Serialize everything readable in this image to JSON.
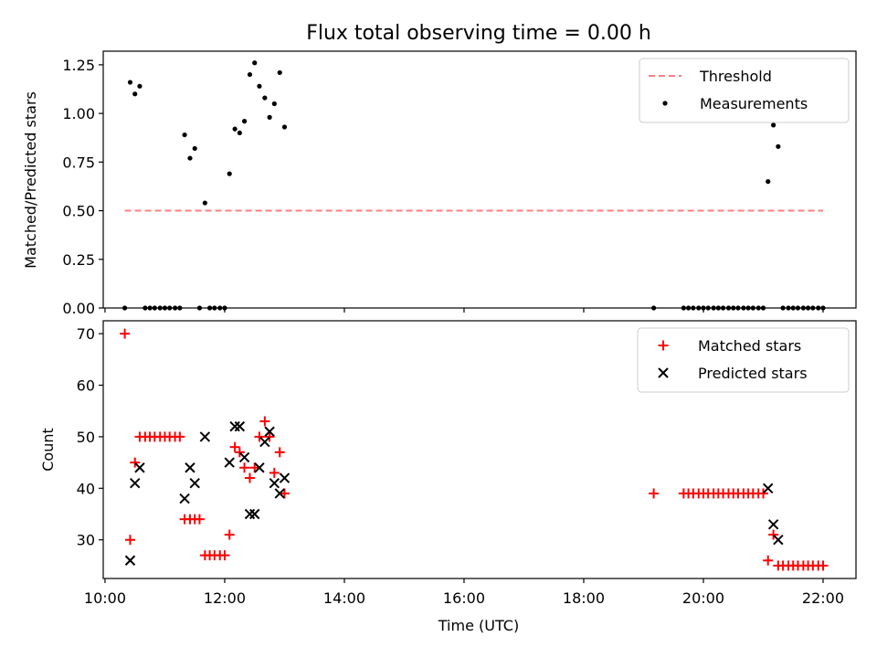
{
  "chart_data": [
    {
      "type": "scatter",
      "title": "Flux total observing time = 0.00 h",
      "xlabel": "",
      "ylabel": "Matched/Predicted stars",
      "xlim": [
        9.97,
        22.55
      ],
      "ylim": [
        0,
        1.32
      ],
      "yticks": [
        {
          "v": 0,
          "label": "0.00"
        },
        {
          "v": 0.25,
          "label": "0.25"
        },
        {
          "v": 0.5,
          "label": "0.50"
        },
        {
          "v": 0.75,
          "label": "0.75"
        },
        {
          "v": 1.0,
          "label": "1.00"
        },
        {
          "v": 1.25,
          "label": "1.25"
        }
      ],
      "legend_position": "top-right",
      "series": [
        {
          "name": "Threshold",
          "kind": "line",
          "color": "#ff7f7f",
          "dash": true,
          "points": [
            [
              10.33,
              0.5
            ],
            [
              22.0,
              0.5
            ]
          ]
        },
        {
          "name": "Measurements",
          "kind": "dot",
          "color": "#000000",
          "points": [
            [
              10.33,
              0.0
            ],
            [
              10.42,
              1.16
            ],
            [
              10.5,
              1.1
            ],
            [
              10.58,
              1.14
            ],
            [
              10.67,
              0.0
            ],
            [
              10.75,
              0.0
            ],
            [
              10.83,
              0.0
            ],
            [
              10.92,
              0.0
            ],
            [
              11.0,
              0.0
            ],
            [
              11.08,
              0.0
            ],
            [
              11.17,
              0.0
            ],
            [
              11.25,
              0.0
            ],
            [
              11.33,
              0.89
            ],
            [
              11.42,
              0.77
            ],
            [
              11.5,
              0.82
            ],
            [
              11.58,
              0.0
            ],
            [
              11.67,
              0.54
            ],
            [
              11.75,
              0.0
            ],
            [
              11.83,
              0.0
            ],
            [
              11.92,
              0.0
            ],
            [
              12.0,
              0.0
            ],
            [
              12.08,
              0.69
            ],
            [
              12.17,
              0.92
            ],
            [
              12.25,
              0.9
            ],
            [
              12.33,
              0.96
            ],
            [
              12.42,
              1.2
            ],
            [
              12.5,
              1.26
            ],
            [
              12.58,
              1.14
            ],
            [
              12.67,
              1.08
            ],
            [
              12.75,
              0.98
            ],
            [
              12.83,
              1.05
            ],
            [
              12.92,
              1.21
            ],
            [
              13.0,
              0.93
            ],
            [
              19.17,
              0.0
            ],
            [
              19.67,
              0.0
            ],
            [
              19.75,
              0.0
            ],
            [
              19.83,
              0.0
            ],
            [
              19.92,
              0.0
            ],
            [
              20.0,
              0.0
            ],
            [
              20.08,
              0.0
            ],
            [
              20.17,
              0.0
            ],
            [
              20.25,
              0.0
            ],
            [
              20.33,
              0.0
            ],
            [
              20.42,
              0.0
            ],
            [
              20.5,
              0.0
            ],
            [
              20.58,
              0.0
            ],
            [
              20.67,
              0.0
            ],
            [
              20.75,
              0.0
            ],
            [
              20.83,
              0.0
            ],
            [
              20.92,
              0.0
            ],
            [
              21.0,
              0.0
            ],
            [
              21.08,
              0.65
            ],
            [
              21.17,
              0.94
            ],
            [
              21.25,
              0.83
            ],
            [
              21.33,
              0.0
            ],
            [
              21.42,
              0.0
            ],
            [
              21.5,
              0.0
            ],
            [
              21.58,
              0.0
            ],
            [
              21.67,
              0.0
            ],
            [
              21.75,
              0.0
            ],
            [
              21.83,
              0.0
            ],
            [
              21.92,
              0.0
            ],
            [
              22.0,
              0.0
            ]
          ]
        }
      ]
    },
    {
      "type": "scatter",
      "title": "",
      "xlabel": "Time (UTC)",
      "ylabel": "Count",
      "xlim": [
        9.97,
        22.55
      ],
      "ylim": [
        22.5,
        72.5
      ],
      "yticks": [
        {
          "v": 30,
          "label": "30"
        },
        {
          "v": 40,
          "label": "40"
        },
        {
          "v": 50,
          "label": "50"
        },
        {
          "v": 60,
          "label": "60"
        },
        {
          "v": 70,
          "label": "70"
        }
      ],
      "xticks": [
        {
          "v": 10,
          "label": "10:00"
        },
        {
          "v": 12,
          "label": "12:00"
        },
        {
          "v": 14,
          "label": "14:00"
        },
        {
          "v": 16,
          "label": "16:00"
        },
        {
          "v": 18,
          "label": "18:00"
        },
        {
          "v": 20,
          "label": "20:00"
        },
        {
          "v": 22,
          "label": "22:00"
        }
      ],
      "legend_position": "top-right",
      "series": [
        {
          "name": "Matched stars",
          "kind": "plus",
          "color": "#ff0000",
          "points": [
            [
              10.33,
              70
            ],
            [
              10.42,
              30
            ],
            [
              10.5,
              45
            ],
            [
              10.58,
              50
            ],
            [
              10.67,
              50
            ],
            [
              10.75,
              50
            ],
            [
              10.83,
              50
            ],
            [
              10.92,
              50
            ],
            [
              11.0,
              50
            ],
            [
              11.08,
              50
            ],
            [
              11.17,
              50
            ],
            [
              11.25,
              50
            ],
            [
              11.33,
              34
            ],
            [
              11.42,
              34
            ],
            [
              11.5,
              34
            ],
            [
              11.58,
              34
            ],
            [
              11.67,
              27
            ],
            [
              11.75,
              27
            ],
            [
              11.83,
              27
            ],
            [
              11.92,
              27
            ],
            [
              12.0,
              27
            ],
            [
              12.08,
              31
            ],
            [
              12.17,
              48
            ],
            [
              12.25,
              47
            ],
            [
              12.33,
              44
            ],
            [
              12.42,
              42
            ],
            [
              12.5,
              44
            ],
            [
              12.58,
              50
            ],
            [
              12.67,
              53
            ],
            [
              12.75,
              50
            ],
            [
              12.83,
              43
            ],
            [
              12.92,
              47
            ],
            [
              13.0,
              39
            ],
            [
              19.17,
              39
            ],
            [
              19.67,
              39
            ],
            [
              19.75,
              39
            ],
            [
              19.83,
              39
            ],
            [
              19.92,
              39
            ],
            [
              20.0,
              39
            ],
            [
              20.08,
              39
            ],
            [
              20.17,
              39
            ],
            [
              20.25,
              39
            ],
            [
              20.33,
              39
            ],
            [
              20.42,
              39
            ],
            [
              20.5,
              39
            ],
            [
              20.58,
              39
            ],
            [
              20.67,
              39
            ],
            [
              20.75,
              39
            ],
            [
              20.83,
              39
            ],
            [
              20.92,
              39
            ],
            [
              21.0,
              39
            ],
            [
              21.08,
              26
            ],
            [
              21.17,
              31
            ],
            [
              21.25,
              25
            ],
            [
              21.33,
              25
            ],
            [
              21.42,
              25
            ],
            [
              21.5,
              25
            ],
            [
              21.58,
              25
            ],
            [
              21.67,
              25
            ],
            [
              21.75,
              25
            ],
            [
              21.83,
              25
            ],
            [
              21.92,
              25
            ],
            [
              22.0,
              25
            ]
          ]
        },
        {
          "name": "Predicted stars",
          "kind": "x",
          "color": "#000000",
          "points": [
            [
              10.42,
              26
            ],
            [
              10.5,
              41
            ],
            [
              10.58,
              44
            ],
            [
              11.33,
              38
            ],
            [
              11.42,
              44
            ],
            [
              11.5,
              41
            ],
            [
              11.67,
              50
            ],
            [
              12.08,
              45
            ],
            [
              12.17,
              52
            ],
            [
              12.25,
              52
            ],
            [
              12.33,
              46
            ],
            [
              12.42,
              35
            ],
            [
              12.5,
              35
            ],
            [
              12.58,
              44
            ],
            [
              12.67,
              49
            ],
            [
              12.75,
              51
            ],
            [
              12.83,
              41
            ],
            [
              12.92,
              39
            ],
            [
              13.0,
              42
            ],
            [
              21.08,
              40
            ],
            [
              21.17,
              33
            ],
            [
              21.25,
              30
            ]
          ]
        }
      ]
    }
  ]
}
